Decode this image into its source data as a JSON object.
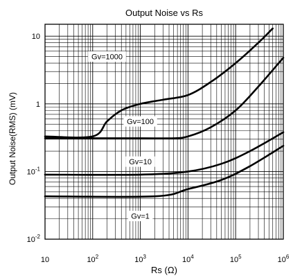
{
  "chart_data": {
    "type": "line",
    "title": "Output Noise vs Rs",
    "xlabel": "Rs  (Ω)",
    "ylabel": "Output Noise(RMS) (mV)",
    "x_scale": "log",
    "y_scale": "log",
    "xlim": [
      10,
      1000000
    ],
    "ylim": [
      0.01,
      15
    ],
    "grid": true,
    "x_ticks": [
      {
        "value": 10,
        "base": "10",
        "exp": ""
      },
      {
        "value": 100,
        "base": "10",
        "exp": "2"
      },
      {
        "value": 1000,
        "base": "10",
        "exp": "3"
      },
      {
        "value": 10000,
        "base": "10",
        "exp": "4"
      },
      {
        "value": 100000,
        "base": "10",
        "exp": "5"
      },
      {
        "value": 1000000,
        "base": "10",
        "exp": "6"
      }
    ],
    "y_ticks": [
      {
        "value": 0.01,
        "base": "10",
        "exp": "-2"
      },
      {
        "value": 0.1,
        "base": "10",
        "exp": "-1"
      },
      {
        "value": 1,
        "base": "1",
        "exp": ""
      },
      {
        "value": 10,
        "base": "10",
        "exp": ""
      }
    ],
    "series": [
      {
        "name": "Gv=1000",
        "label_at": [
          200,
          5.0
        ],
        "points": [
          [
            10,
            0.33
          ],
          [
            100,
            0.33
          ],
          [
            200,
            0.55
          ],
          [
            400,
            0.8
          ],
          [
            1000,
            1.0
          ],
          [
            3000,
            1.15
          ],
          [
            10000,
            1.35
          ],
          [
            30000,
            2.1
          ],
          [
            100000,
            4.0
          ],
          [
            300000,
            8.0
          ],
          [
            600000,
            13.0
          ]
        ]
      },
      {
        "name": "Gv=100",
        "label_at": [
          1000,
          0.55
        ],
        "points": [
          [
            10,
            0.31
          ],
          [
            1000,
            0.31
          ],
          [
            5000,
            0.31
          ],
          [
            10000,
            0.33
          ],
          [
            30000,
            0.45
          ],
          [
            100000,
            0.8
          ],
          [
            300000,
            1.8
          ],
          [
            1000000,
            4.8
          ]
        ]
      },
      {
        "name": "Gv=10",
        "label_at": [
          1000,
          0.14
        ],
        "points": [
          [
            10,
            0.09
          ],
          [
            1000,
            0.09
          ],
          [
            10000,
            0.1
          ],
          [
            50000,
            0.13
          ],
          [
            200000,
            0.2
          ],
          [
            1000000,
            0.38
          ]
        ]
      },
      {
        "name": "Gv=1",
        "label_at": [
          1000,
          0.022
        ],
        "points": [
          [
            10,
            0.043
          ],
          [
            2000,
            0.043
          ],
          [
            10000,
            0.055
          ],
          [
            50000,
            0.075
          ],
          [
            200000,
            0.12
          ],
          [
            1000000,
            0.24
          ]
        ]
      }
    ]
  }
}
